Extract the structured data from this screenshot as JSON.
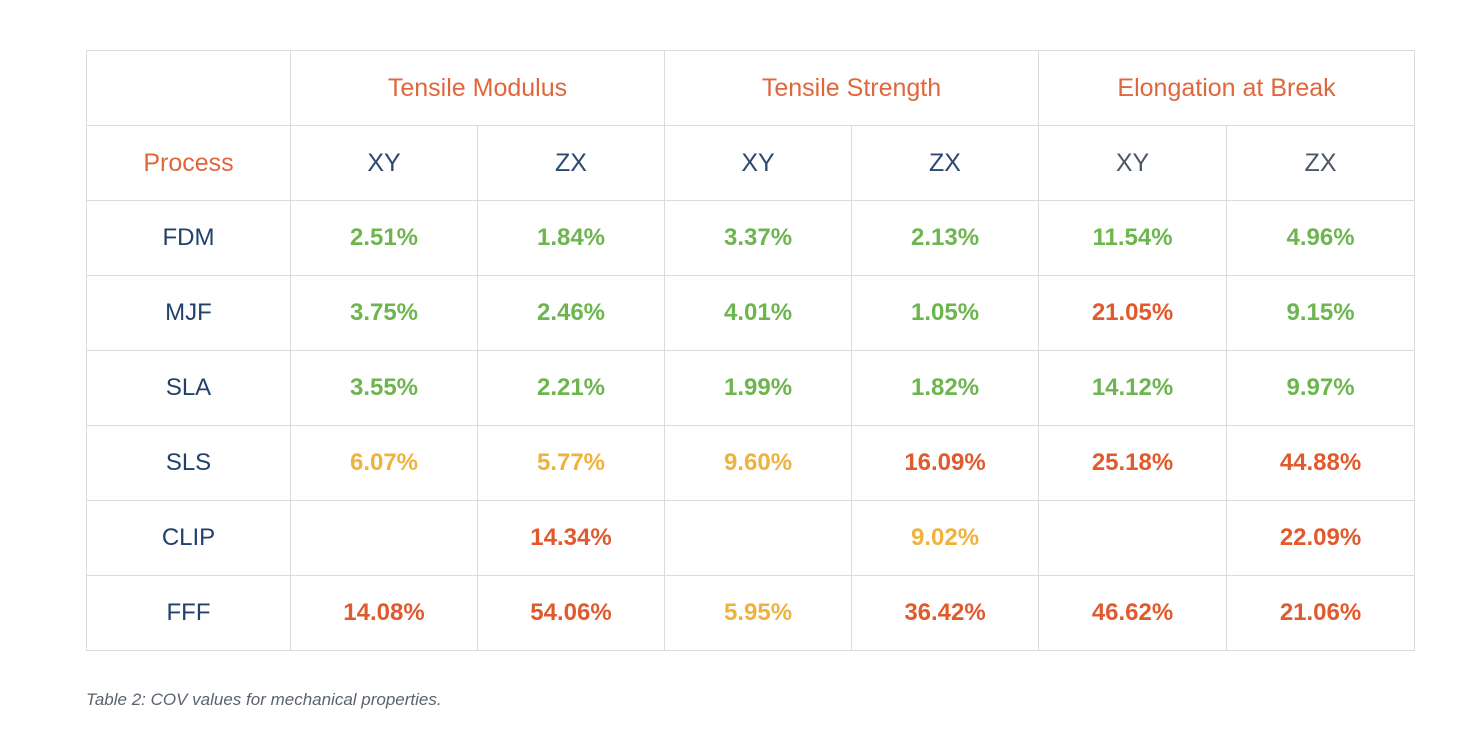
{
  "table": {
    "groups": [
      {
        "label": "Tensile Modulus"
      },
      {
        "label": "Tensile Strength"
      },
      {
        "label": "Elongation at Break"
      }
    ],
    "process_header": "Process",
    "subheaders": [
      "XY",
      "ZX",
      "XY",
      "ZX",
      "XY",
      "ZX"
    ],
    "rows": [
      {
        "process": "FDM",
        "values": [
          "2.51%",
          "1.84%",
          "3.37%",
          "2.13%",
          "11.54%",
          "4.96%"
        ],
        "status": [
          "green",
          "green",
          "green",
          "green",
          "green",
          "green"
        ]
      },
      {
        "process": "MJF",
        "values": [
          "3.75%",
          "2.46%",
          "4.01%",
          "1.05%",
          "21.05%",
          "9.15%"
        ],
        "status": [
          "green",
          "green",
          "green",
          "green",
          "red",
          "green"
        ]
      },
      {
        "process": "SLA",
        "values": [
          "3.55%",
          "2.21%",
          "1.99%",
          "1.82%",
          "14.12%",
          "9.97%"
        ],
        "status": [
          "green",
          "green",
          "green",
          "green",
          "green",
          "green"
        ]
      },
      {
        "process": "SLS",
        "values": [
          "6.07%",
          "5.77%",
          "9.60%",
          "16.09%",
          "25.18%",
          "44.88%"
        ],
        "status": [
          "yellow",
          "yellow",
          "yellow",
          "red",
          "red",
          "red"
        ]
      },
      {
        "process": "CLIP",
        "values": [
          "",
          "14.34%",
          "",
          "9.02%",
          "",
          "22.09%"
        ],
        "status": [
          "",
          "red",
          "",
          "yellow",
          "",
          "red"
        ]
      },
      {
        "process": "FFF",
        "values": [
          "14.08%",
          "54.06%",
          "5.95%",
          "36.42%",
          "46.62%",
          "21.06%"
        ],
        "status": [
          "red",
          "red",
          "yellow",
          "red",
          "red",
          "red"
        ]
      }
    ]
  },
  "colors": {
    "header_accent": "#e0663c",
    "process_text": "#21406a",
    "green": "#6db54e",
    "yellow": "#efb23c",
    "red": "#e05a2e",
    "border": "#dcdcdc"
  },
  "caption": "Table 2: COV values for mechanical properties."
}
